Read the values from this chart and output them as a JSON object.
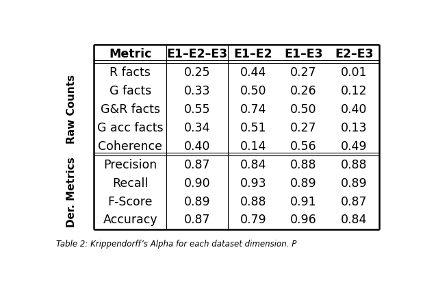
{
  "col_headers": [
    "Metric",
    "E1–E2–E3",
    "E1–E2",
    "E1–E3",
    "E2–E3"
  ],
  "row_group1_label": "Raw Counts",
  "row_group2_label": "Der. Metrics",
  "rows": [
    {
      "metric": "R facts",
      "e1e2e3": "0.25",
      "e1e2": "0.44",
      "e1e3": "0.27",
      "e2e3": "0.01"
    },
    {
      "metric": "G facts",
      "e1e2e3": "0.33",
      "e1e2": "0.50",
      "e1e3": "0.26",
      "e2e3": "0.12"
    },
    {
      "metric": "G&R facts",
      "e1e2e3": "0.55",
      "e1e2": "0.74",
      "e1e3": "0.50",
      "e2e3": "0.40"
    },
    {
      "metric": "G acc facts",
      "e1e2e3": "0.34",
      "e1e2": "0.51",
      "e1e3": "0.27",
      "e2e3": "0.13"
    },
    {
      "metric": "Coherence",
      "e1e2e3": "0.40",
      "e1e2": "0.14",
      "e1e3": "0.56",
      "e2e3": "0.49"
    },
    {
      "metric": "Precision",
      "e1e2e3": "0.87",
      "e1e2": "0.84",
      "e1e3": "0.88",
      "e2e3": "0.88"
    },
    {
      "metric": "Recall",
      "e1e2e3": "0.90",
      "e1e2": "0.93",
      "e1e3": "0.89",
      "e2e3": "0.89"
    },
    {
      "metric": "F-Score",
      "e1e2e3": "0.89",
      "e1e2": "0.88",
      "e1e3": "0.91",
      "e2e3": "0.87"
    },
    {
      "metric": "Accuracy",
      "e1e2e3": "0.87",
      "e1e2": "0.79",
      "e1e3": "0.96",
      "e2e3": "0.84"
    }
  ],
  "caption": "Table 2: Krippendorff’s Alpha for each dataset dimension. P",
  "bg_color": "#ffffff",
  "text_color": "#000000",
  "header_fontsize": 12.5,
  "cell_fontsize": 12.5,
  "group_label_fontsize": 11.0
}
